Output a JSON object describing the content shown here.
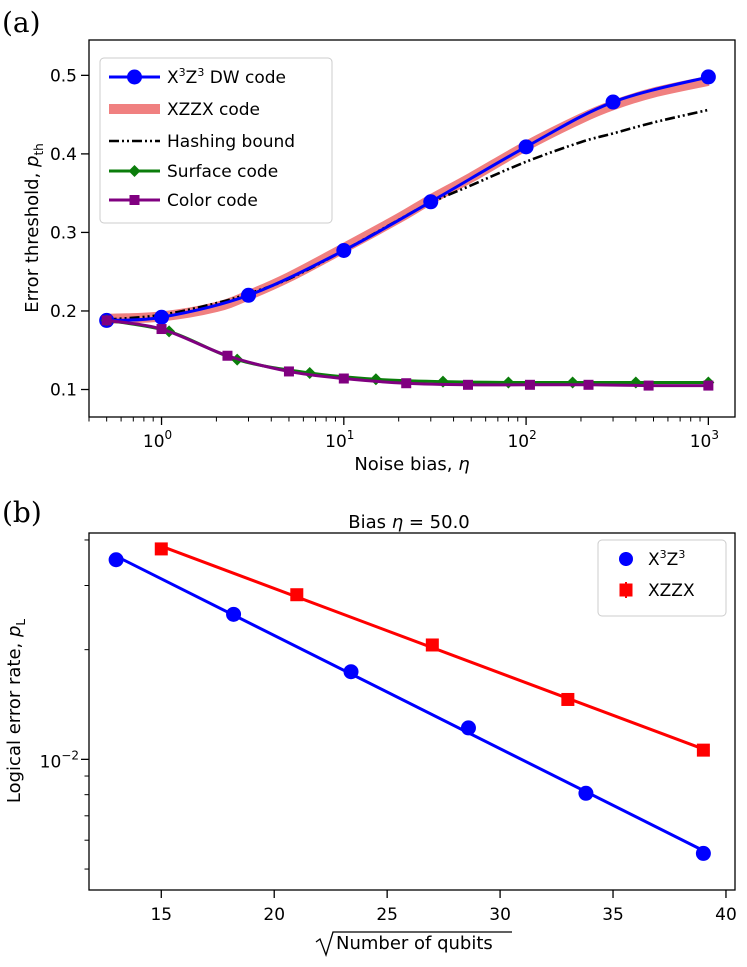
{
  "panel_labels": {
    "a": "(a)",
    "b": "(b)"
  },
  "chart_data": [
    {
      "type": "line",
      "panel": "(a)",
      "xlabel_text": "Noise bias, ",
      "xlabel_symbol": "η",
      "ylabel_text": "Error threshold, ",
      "ylabel_symbol": "p",
      "ylabel_subscript": "th",
      "xscale": "log",
      "xlim": [
        0.4,
        1400
      ],
      "ylim": [
        0.065,
        0.545
      ],
      "x_ticks": [
        1,
        10,
        100,
        1000
      ],
      "x_tick_labels": [
        {
          "base": "10",
          "exp": "0"
        },
        {
          "base": "10",
          "exp": "1"
        },
        {
          "base": "10",
          "exp": "2"
        },
        {
          "base": "10",
          "exp": "3"
        }
      ],
      "y_ticks": [
        0.1,
        0.2,
        0.3,
        0.4,
        0.5
      ],
      "y_tick_labels": [
        "0.1",
        "0.2",
        "0.3",
        "0.4",
        "0.5"
      ],
      "legend_position": "upper-left",
      "legend": [
        {
          "key": "dw",
          "label": "X",
          "sup1": "3",
          "mid": "Z",
          "sup2": "3",
          "rest": " DW code"
        },
        {
          "key": "xzzx",
          "label": "XZZX code"
        },
        {
          "key": "hash",
          "label": "Hashing bound"
        },
        {
          "key": "surface",
          "label": "Surface code"
        },
        {
          "key": "color",
          "label": "Color code"
        }
      ],
      "series": [
        {
          "key": "xzzx",
          "name": "XZZX code",
          "color": "#f08080",
          "style": "thick",
          "x": [
            0.5,
            1,
            2,
            3,
            5,
            10,
            20,
            30,
            50,
            100,
            200,
            300,
            500,
            1000
          ],
          "y": [
            0.19,
            0.193,
            0.205,
            0.22,
            0.243,
            0.28,
            0.318,
            0.342,
            0.37,
            0.41,
            0.445,
            0.462,
            0.478,
            0.493
          ]
        },
        {
          "key": "hash",
          "name": "Hashing bound",
          "color": "#000000",
          "style": "dashdot",
          "x": [
            0.5,
            1,
            2,
            3,
            5,
            10,
            20,
            30,
            50,
            100,
            200,
            300,
            500,
            1000
          ],
          "y": [
            0.189,
            0.195,
            0.21,
            0.222,
            0.241,
            0.277,
            0.316,
            0.338,
            0.36,
            0.39,
            0.415,
            0.426,
            0.44,
            0.456
          ]
        },
        {
          "key": "dw",
          "name": "X3Z3 DW code",
          "color": "#0000ff",
          "style": "smooth",
          "marker": "circle",
          "x": [
            0.5,
            1,
            3,
            10,
            30,
            100,
            300,
            1000
          ],
          "y": [
            0.188,
            0.192,
            0.22,
            0.277,
            0.339,
            0.409,
            0.466,
            0.498
          ]
        },
        {
          "key": "surface",
          "name": "Surface code",
          "color": "#0b7d0b",
          "style": "line",
          "marker": "diamond",
          "x": [
            0.5,
            1.1,
            2.6,
            6.5,
            15,
            35,
            80,
            180,
            400,
            1000
          ],
          "y": [
            0.188,
            0.174,
            0.138,
            0.121,
            0.113,
            0.11,
            0.109,
            0.109,
            0.109,
            0.109
          ]
        },
        {
          "key": "color",
          "name": "Color code",
          "color": "#800080",
          "style": "line",
          "marker": "square",
          "x": [
            0.5,
            1,
            2.3,
            5,
            10,
            22,
            48,
            105,
            220,
            470,
            1000
          ],
          "y": [
            0.188,
            0.177,
            0.143,
            0.123,
            0.114,
            0.108,
            0.106,
            0.106,
            0.106,
            0.105,
            0.105
          ]
        }
      ]
    },
    {
      "type": "scatter",
      "panel": "(b)",
      "title_text": "Bias ",
      "title_symbol": "η",
      "title_value": " = 50.0",
      "xlabel_text": "Number of qubits",
      "ylabel_text": "Logical error rate, ",
      "ylabel_symbol": "p",
      "ylabel_subscript": "L",
      "yscale": "log",
      "xlim": [
        11.8,
        40.4
      ],
      "ylim": [
        0.00438,
        0.0418
      ],
      "x_ticks": [
        15,
        20,
        25,
        30,
        35,
        40
      ],
      "x_tick_labels": [
        "15",
        "20",
        "25",
        "30",
        "35",
        "40"
      ],
      "y_major_ticks": [
        0.01
      ],
      "y_major_tick_labels": [
        {
          "base": "10",
          "exp": "−2"
        }
      ],
      "y_minor_ticks": [
        0.005,
        0.006,
        0.007,
        0.008,
        0.009,
        0.02,
        0.03,
        0.04
      ],
      "legend_position": "upper-right",
      "legend": [
        {
          "key": "x3z3",
          "label": "X",
          "sup1": "3",
          "mid": "Z",
          "sup2": "3"
        },
        {
          "key": "xzzx",
          "label": "XZZX"
        }
      ],
      "series": [
        {
          "key": "x3z3",
          "name": "X3Z3",
          "color": "#0000ff",
          "marker": "circle",
          "x": [
            13,
            18.2,
            23.4,
            28.6,
            33.8,
            39
          ],
          "y": [
            0.0353,
            0.025,
            0.0174,
            0.0122,
            0.00807,
            0.00552
          ]
        },
        {
          "key": "xzzx",
          "name": "XZZX",
          "color": "#ff0000",
          "marker": "square",
          "x": [
            15,
            21,
            27,
            33,
            39
          ],
          "y": [
            0.0378,
            0.0283,
            0.0206,
            0.0146,
            0.0106
          ]
        }
      ]
    }
  ]
}
